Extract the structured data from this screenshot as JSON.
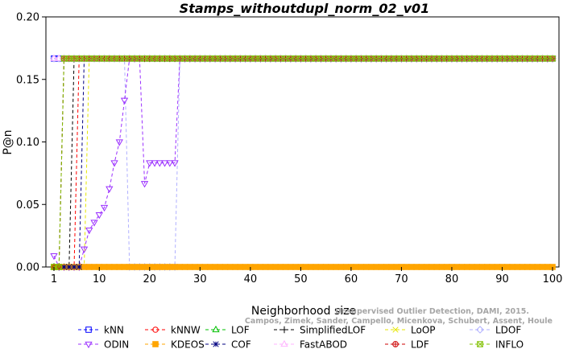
{
  "chart_data": {
    "type": "line",
    "title": "Stamps_withoutdupl_norm_02_v01",
    "xlabel": "Neighborhood size",
    "ylabel": "P@n",
    "xlim": [
      1,
      100
    ],
    "ylim": [
      0,
      0.2
    ],
    "x_ticks": [
      1,
      10,
      20,
      30,
      40,
      50,
      60,
      70,
      80,
      90,
      100
    ],
    "x_tick_labels": [
      "1",
      "10",
      "20",
      "30",
      "40",
      "50",
      "60",
      "70",
      "80",
      "90",
      "100"
    ],
    "y_ticks": [
      0,
      0.05,
      0.1,
      0.15,
      0.2
    ],
    "y_tick_labels": [
      "0.00",
      "0.05",
      "0.10",
      "0.15",
      "0.20"
    ],
    "grid": false,
    "legend_position": "bottom",
    "credit": {
      "line1": "Unsupervised Outlier Detection, DAMI, 2015.",
      "line2": "Campos, Zimek, Sander, Campello, Micenkova, Schubert, Assent, Houle"
    },
    "series": [
      {
        "name": "kNN",
        "color": "#0000ff",
        "marker": "square",
        "dash": "4,3",
        "segments": [
          {
            "x": [
              1,
              100
            ],
            "y": [
              0.1667,
              0.1667
            ]
          }
        ]
      },
      {
        "name": "kNNW",
        "color": "#ff0000",
        "marker": "circle",
        "dash": "4,3",
        "segments": [
          {
            "x": [
              1,
              5
            ],
            "y": [
              0,
              0
            ]
          },
          {
            "x": [
              6,
              100
            ],
            "y": [
              0.1667,
              0.1667
            ]
          }
        ]
      },
      {
        "name": "LOF",
        "color": "#00c000",
        "marker": "triangle-up",
        "dash": "4,3",
        "segments": [
          {
            "x": [
              1,
              2
            ],
            "y": [
              0,
              0
            ]
          },
          {
            "x": [
              3,
              100
            ],
            "y": [
              0.1667,
              0.1667
            ]
          }
        ]
      },
      {
        "name": "SimplifiedLOF",
        "color": "#000000",
        "marker": "plus",
        "dash": "4,3",
        "segments": [
          {
            "x": [
              1,
              4
            ],
            "y": [
              0,
              0
            ]
          },
          {
            "x": [
              5,
              100
            ],
            "y": [
              0.1667,
              0.1667
            ]
          }
        ]
      },
      {
        "name": "LoOP",
        "color": "#e6e600",
        "marker": "x",
        "dash": "4,3",
        "segments": [
          {
            "x": [
              1,
              7
            ],
            "y": [
              0,
              0
            ]
          },
          {
            "x": [
              8,
              100
            ],
            "y": [
              0.1667,
              0.1667
            ]
          }
        ]
      },
      {
        "name": "LDOF",
        "color": "#b0b0ff",
        "marker": "diamond",
        "dash": "4,3",
        "segments": [
          {
            "x": [
              1,
              15
            ],
            "y": [
              0.1667,
              0.1667
            ]
          },
          {
            "x": [
              16,
              25
            ],
            "y": [
              0,
              0
            ]
          },
          {
            "x": [
              26,
              100
            ],
            "y": [
              0.1667,
              0.1667
            ]
          }
        ]
      },
      {
        "name": "ODIN",
        "color": "#9b30ff",
        "marker": "triangle-down",
        "dash": "4,3",
        "segments": [
          {
            "x": [
              1,
              2,
              3,
              4,
              5,
              6,
              7,
              8,
              9,
              10,
              11,
              12,
              13,
              14,
              15,
              16,
              17,
              18,
              19,
              20,
              21,
              22,
              23,
              24,
              25,
              26,
              27,
              28,
              29,
              30,
              31,
              32,
              33,
              34,
              35,
              36,
              37,
              38,
              39,
              40,
              41,
              42,
              43,
              44,
              45,
              46,
              47,
              48,
              49,
              50,
              51,
              52,
              53,
              54,
              55,
              56,
              57,
              58,
              59,
              60,
              61,
              62,
              63,
              64,
              65,
              66,
              67,
              68,
              69,
              70,
              71,
              72,
              73,
              74,
              75,
              76,
              77,
              78,
              79,
              80,
              81,
              82,
              83,
              84,
              85,
              86,
              87,
              88,
              89,
              90,
              91,
              92,
              93,
              94,
              95,
              96,
              97,
              98,
              99,
              100
            ],
            "y": [
              0.0089,
              0,
              0,
              0,
              0,
              0,
              0.0143,
              0.0294,
              0.0357,
              0.0417,
              0.0476,
              0.0625,
              0.0833,
              0.1,
              0.1333,
              0.1667,
              0.1667,
              0.1667,
              0.0667,
              0.0833,
              0.0833,
              0.0833,
              0.0833,
              0.0833,
              0.0833,
              0.1667,
              0.1667,
              0.1667,
              0.1667,
              0.1667,
              0.1667,
              0.1667,
              0.1667,
              0.1667,
              0.1667,
              0.1667,
              0.1667,
              0.1667,
              0.1667,
              0.1667,
              0.1667,
              0.1667,
              0.1667,
              0.1667,
              0.1667,
              0.1667,
              0.1667,
              0.1667,
              0.1667,
              0.1667,
              0.1667,
              0.1667,
              0.1667,
              0.1667,
              0.1667,
              0.1667,
              0.1667,
              0.1667,
              0.1667,
              0.1667,
              0.1667,
              0.1667,
              0.1667,
              0.1667,
              0.1667,
              0.1667,
              0.1667,
              0.1667,
              0.1667,
              0.1667,
              0.1667,
              0.1667,
              0.1667,
              0.1667,
              0.1667,
              0.1667,
              0.1667,
              0.1667,
              0.1667,
              0.1667,
              0.1667,
              0.1667,
              0.1667,
              0.1667,
              0.1667,
              0.1667,
              0.1667,
              0.1667,
              0.1667,
              0.1667,
              0.1667,
              0.1667,
              0.1667,
              0.1667,
              0.1667,
              0.1667,
              0.1667,
              0.1667,
              0.1667,
              0.1667
            ]
          }
        ]
      },
      {
        "name": "KDEOS",
        "color": "#ffa500",
        "marker": "square-filled",
        "dash": "4,3",
        "segments": [
          {
            "x": [
              1,
              100
            ],
            "y": [
              0,
              0
            ]
          }
        ]
      },
      {
        "name": "COF",
        "color": "#000080",
        "marker": "star",
        "dash": "4,3",
        "segments": [
          {
            "x": [
              1,
              6
            ],
            "y": [
              0,
              0
            ]
          },
          {
            "x": [
              7,
              100
            ],
            "y": [
              0.1667,
              0.1667
            ]
          }
        ]
      },
      {
        "name": "FastABOD",
        "color": "#ffb3ff",
        "marker": "triangle-up",
        "dash": "4,3",
        "segments": [
          {
            "x": [
              1,
              100
            ],
            "y": [
              0.1667,
              0.1667
            ]
          }
        ]
      },
      {
        "name": "LDF",
        "color": "#cc0000",
        "marker": "circle-plus",
        "dash": "4,3",
        "segments": [
          {
            "x": [
              1,
              2
            ],
            "y": [
              0,
              0
            ]
          },
          {
            "x": [
              3,
              100
            ],
            "y": [
              0.1667,
              0.1667
            ]
          }
        ]
      },
      {
        "name": "INFLO",
        "color": "#80c000",
        "marker": "square-x",
        "dash": "4,3",
        "segments": [
          {
            "x": [
              1,
              2
            ],
            "y": [
              0,
              0
            ]
          },
          {
            "x": [
              3,
              100
            ],
            "y": [
              0.1667,
              0.1667
            ]
          }
        ]
      }
    ],
    "legend_rows": [
      [
        "kNN",
        "kNNW",
        "LOF",
        "SimplifiedLOF",
        "LoOP",
        "LDOF"
      ],
      [
        "ODIN",
        "KDEOS",
        "COF",
        "FastABOD",
        "LDF",
        "INFLO"
      ]
    ]
  }
}
